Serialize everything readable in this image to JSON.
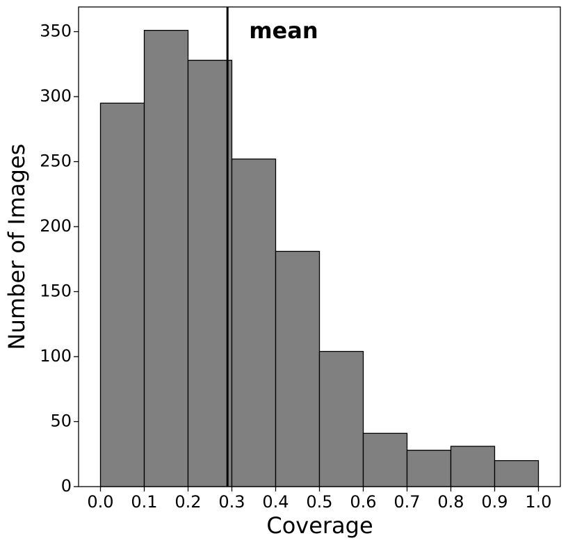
{
  "chart_data": {
    "type": "histogram",
    "xlabel": "Coverage",
    "ylabel": "Number of Images",
    "bins": [
      0,
      0.1,
      0.2,
      0.3,
      0.4,
      0.5,
      0.6,
      0.7,
      0.8,
      0.9,
      1.0
    ],
    "values": [
      295,
      351,
      328,
      252,
      181,
      104,
      41,
      28,
      31,
      20
    ],
    "color": "#808080",
    "edgecolor": "#000000",
    "xlim": [
      -0.05,
      1.05
    ],
    "ylim": [
      0,
      369
    ],
    "xticks": [
      {
        "value": 0,
        "label": "0.0"
      },
      0.1,
      0.2,
      0.3,
      0.4,
      0.5,
      0.6,
      0.7,
      0.8,
      0.9,
      {
        "value": 1,
        "label": "1.0"
      }
    ],
    "yticks": [
      0,
      50,
      100,
      150,
      200,
      250,
      300,
      350
    ],
    "mean_line": 0.29,
    "mean_label": "mean"
  }
}
